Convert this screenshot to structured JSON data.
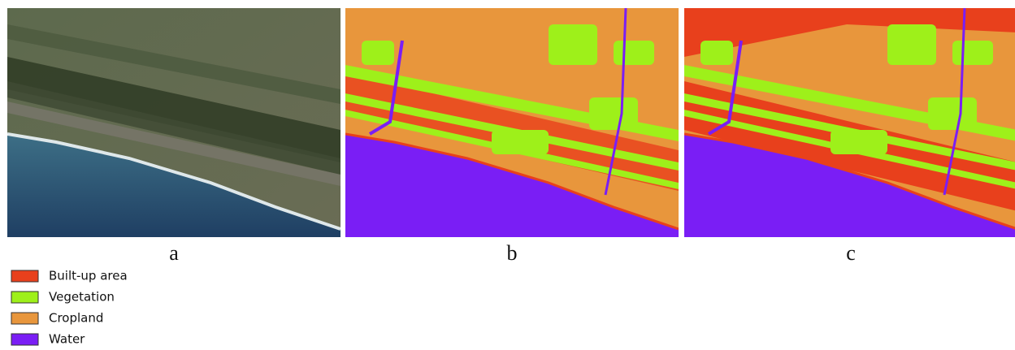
{
  "panels": [
    {
      "label": "a"
    },
    {
      "label": "b"
    },
    {
      "label": "c"
    }
  ],
  "legend": [
    {
      "name": "Built-up area",
      "color": "#e8401c"
    },
    {
      "name": "Vegetation",
      "color": "#9ef01a"
    },
    {
      "name": "Cropland",
      "color": "#e8963c"
    },
    {
      "name": "Water",
      "color": "#7a1ef5"
    }
  ]
}
